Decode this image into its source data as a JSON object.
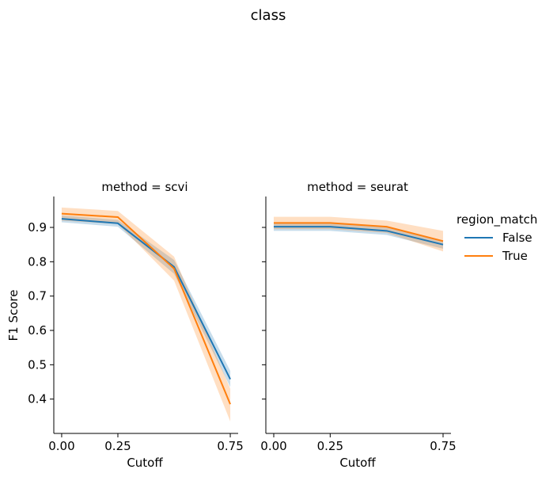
{
  "chart_data": {
    "type": "line",
    "title": "class",
    "ylabel": "F1 Score",
    "ylim": [
      0.3,
      0.99
    ],
    "yticks": [
      0.4,
      0.5,
      0.6,
      0.7,
      0.8,
      0.9
    ],
    "ytick_labels": [
      "0.4",
      "0.5",
      "0.6",
      "0.7",
      "0.8",
      "0.9"
    ],
    "xticks": [
      0.0,
      0.25,
      0.75
    ],
    "xtick_labels": [
      "0.00",
      "0.25",
      "0.75"
    ],
    "xlim": [
      -0.035,
      0.785
    ],
    "grid": false,
    "legend": {
      "title": "region_match",
      "placement": "right"
    },
    "colors": {
      "False": "#1f77b4",
      "True": "#ff7f0e"
    },
    "panels": [
      {
        "title": "method = scvi",
        "xlabel": "Cutoff",
        "x": [
          0.0,
          0.25,
          0.5,
          0.75
        ],
        "series": [
          {
            "name": "False",
            "values": [
              0.925,
              0.912,
              0.785,
              0.458
            ],
            "ci_low": [
              0.915,
              0.902,
              0.765,
              0.435
            ],
            "ci_high": [
              0.935,
              0.922,
              0.805,
              0.482
            ]
          },
          {
            "name": "True",
            "values": [
              0.94,
              0.93,
              0.78,
              0.385
            ],
            "ci_low": [
              0.92,
              0.91,
              0.745,
              0.335
            ],
            "ci_high": [
              0.958,
              0.948,
              0.815,
              0.43
            ]
          }
        ]
      },
      {
        "title": "method = seurat",
        "xlabel": "Cutoff",
        "x": [
          0.0,
          0.25,
          0.5,
          0.75
        ],
        "series": [
          {
            "name": "False",
            "values": [
              0.902,
              0.902,
              0.89,
              0.85
            ],
            "ci_low": [
              0.89,
              0.89,
              0.878,
              0.838
            ],
            "ci_high": [
              0.914,
              0.914,
              0.902,
              0.862
            ]
          },
          {
            "name": "True",
            "values": [
              0.913,
              0.913,
              0.902,
              0.86
            ],
            "ci_low": [
              0.895,
              0.895,
              0.884,
              0.83
            ],
            "ci_high": [
              0.931,
              0.931,
              0.92,
              0.89
            ]
          }
        ]
      }
    ]
  }
}
